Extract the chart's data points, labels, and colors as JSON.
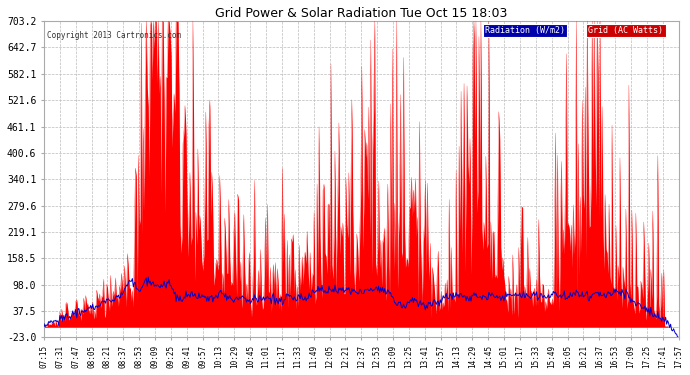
{
  "title": "Grid Power & Solar Radiation Tue Oct 15 18:03",
  "copyright": "Copyright 2013 Cartronics.com",
  "legend_radiation": "Radiation (W/m2)",
  "legend_grid": "Grid (AC Watts)",
  "ymin": -23.0,
  "ymax": 703.2,
  "yticks": [
    703.2,
    642.7,
    582.1,
    521.6,
    461.1,
    400.6,
    340.1,
    279.6,
    219.1,
    158.5,
    98.0,
    37.5,
    -23.0
  ],
  "xtick_labels": [
    "07:15",
    "07:31",
    "07:47",
    "08:05",
    "08:21",
    "08:37",
    "08:53",
    "09:09",
    "09:25",
    "09:41",
    "09:57",
    "10:13",
    "10:29",
    "10:45",
    "11:01",
    "11:17",
    "11:33",
    "11:49",
    "12:05",
    "12:21",
    "12:37",
    "12:53",
    "13:09",
    "13:25",
    "13:41",
    "13:57",
    "14:13",
    "14:29",
    "14:45",
    "15:01",
    "15:17",
    "15:33",
    "15:49",
    "16:05",
    "16:21",
    "16:37",
    "16:53",
    "17:09",
    "17:25",
    "17:41",
    "17:57"
  ],
  "bg_color": "#ffffff",
  "plot_bg_color": "#ffffff",
  "grid_color": "#bbbbbb",
  "bar_color": "#ff0000",
  "line_color": "#0000cc",
  "title_color": "#000000",
  "axis_color": "#000000",
  "legend_rad_bg": "#0000aa",
  "legend_grid_bg": "#cc0000"
}
